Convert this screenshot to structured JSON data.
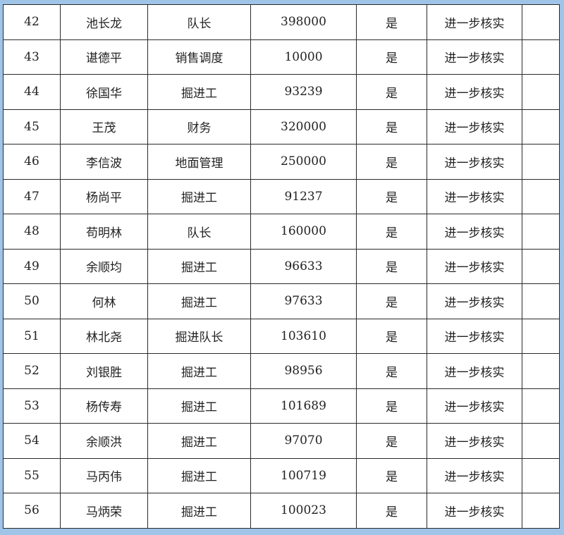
{
  "rows": [
    [
      "42",
      "池长龙",
      "队长",
      "398000",
      "是",
      "进一步核实",
      ""
    ],
    [
      "43",
      "谌德平",
      "销售调度",
      "10000",
      "是",
      "进一步核实",
      ""
    ],
    [
      "44",
      "徐国华",
      "掘进工",
      "93239",
      "是",
      "进一步核实",
      ""
    ],
    [
      "45",
      "王茂",
      "财务",
      "320000",
      "是",
      "进一步核实",
      ""
    ],
    [
      "46",
      "李信波",
      "地面管理",
      "250000",
      "是",
      "进一步核实",
      ""
    ],
    [
      "47",
      "杨尚平",
      "掘进工",
      "91237",
      "是",
      "进一步核实",
      ""
    ],
    [
      "48",
      "苟明林",
      "队长",
      "160000",
      "是",
      "进一步核实",
      ""
    ],
    [
      "49",
      "余顺均",
      "掘进工",
      "96633",
      "是",
      "进一步核实",
      ""
    ],
    [
      "50",
      "何林",
      "掘进工",
      "97633",
      "是",
      "进一步核实",
      ""
    ],
    [
      "51",
      "林北尧",
      "掘进队长",
      "103610",
      "是",
      "进一步核实",
      ""
    ],
    [
      "52",
      "刘银胜",
      "掘进工",
      "98956",
      "是",
      "进一步核实",
      ""
    ],
    [
      "53",
      "杨传寿",
      "掘进工",
      "101689",
      "是",
      "进一步核实",
      ""
    ],
    [
      "54",
      "余顺洪",
      "掘进工",
      "97070",
      "是",
      "进一步核实",
      ""
    ],
    [
      "55",
      "马丙伟",
      "掘进工",
      "100719",
      "是",
      "进一步核实",
      ""
    ],
    [
      "56",
      "马炳荣",
      "掘进工",
      "100023",
      "是",
      "进一步核实",
      ""
    ]
  ]
}
